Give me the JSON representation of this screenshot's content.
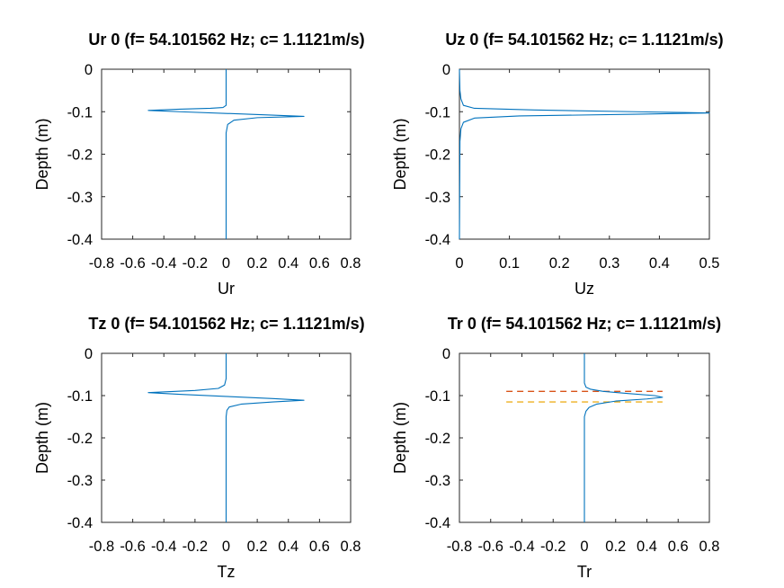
{
  "chart_data": [
    {
      "type": "line",
      "title": "Ur 0 (f= 54.101562 Hz; c= 1.1121m/s)",
      "xlabel": "Ur",
      "ylabel": "Depth (m)",
      "xlim": [
        -0.8,
        0.8
      ],
      "ylim": [
        -0.4,
        0
      ],
      "xticks": [
        "-0.8",
        "-0.6",
        "-0.4",
        "-0.2",
        "0",
        "0.2",
        "0.4",
        "0.6",
        "0.8"
      ],
      "yticks": [
        "0",
        "-0.1",
        "-0.2",
        "-0.3",
        "-0.4"
      ],
      "line_color": "#0072bd",
      "series": [
        {
          "x": [
            0,
            0,
            0,
            -0.02,
            -0.1,
            -0.3,
            -0.5,
            -0.3,
            0,
            0.3,
            0.5,
            0.2,
            0.05,
            0.01,
            0,
            0
          ],
          "y": [
            0,
            -0.06,
            -0.085,
            -0.09,
            -0.092,
            -0.094,
            -0.097,
            -0.1,
            -0.104,
            -0.108,
            -0.111,
            -0.114,
            -0.12,
            -0.13,
            -0.15,
            -0.4
          ]
        }
      ]
    },
    {
      "type": "line",
      "title": "Uz 0 (f= 54.101562 Hz; c= 1.1121m/s)",
      "xlabel": "Uz",
      "ylabel": "Depth (m)",
      "xlim": [
        0,
        0.5
      ],
      "ylim": [
        -0.4,
        0
      ],
      "xticks": [
        "0",
        "0.1",
        "0.2",
        "0.3",
        "0.4",
        "0.5"
      ],
      "yticks": [
        "0",
        "-0.1",
        "-0.2",
        "-0.3",
        "-0.4"
      ],
      "line_color": "#0072bd",
      "series": [
        {
          "x": [
            0,
            0.001,
            0.003,
            0.008,
            0.03,
            0.15,
            0.35,
            0.5,
            0.35,
            0.12,
            0.03,
            0.008,
            0.003,
            0.001,
            0
          ],
          "y": [
            0,
            -0.05,
            -0.07,
            -0.085,
            -0.092,
            -0.096,
            -0.1,
            -0.103,
            -0.106,
            -0.11,
            -0.115,
            -0.125,
            -0.14,
            -0.17,
            -0.4
          ]
        }
      ]
    },
    {
      "type": "line",
      "title": "Tz 0 (f= 54.101562 Hz; c= 1.1121m/s)",
      "xlabel": "Tz",
      "ylabel": "Depth (m)",
      "xlim": [
        -0.8,
        0.8
      ],
      "ylim": [
        -0.4,
        0
      ],
      "xticks": [
        "-0.8",
        "-0.6",
        "-0.4",
        "-0.2",
        "0",
        "0.2",
        "0.4",
        "0.6",
        "0.8"
      ],
      "yticks": [
        "0",
        "-0.1",
        "-0.2",
        "-0.3",
        "-0.4"
      ],
      "line_color": "#0072bd",
      "series": [
        {
          "x": [
            0,
            0,
            -0.01,
            -0.05,
            -0.2,
            -0.5,
            -0.3,
            0,
            0.3,
            0.5,
            0.3,
            0.1,
            0.02,
            0.005,
            0,
            0
          ],
          "y": [
            0,
            -0.06,
            -0.075,
            -0.083,
            -0.088,
            -0.093,
            -0.097,
            -0.102,
            -0.107,
            -0.111,
            -0.115,
            -0.12,
            -0.127,
            -0.135,
            -0.15,
            -0.4
          ]
        }
      ]
    },
    {
      "type": "line",
      "title": "Tr 0 (f= 54.101562 Hz; c= 1.1121m/s)",
      "xlabel": "Tr",
      "ylabel": "Depth (m)",
      "xlim": [
        -0.8,
        0.8
      ],
      "ylim": [
        -0.4,
        0
      ],
      "xticks": [
        "-0.8",
        "-0.6",
        "-0.4",
        "-0.2",
        "0",
        "0.2",
        "0.4",
        "0.6",
        "0.8"
      ],
      "yticks": [
        "0",
        "-0.1",
        "-0.2",
        "-0.3",
        "-0.4"
      ],
      "line_color": "#0072bd",
      "series": [
        {
          "x": [
            0,
            0,
            0.01,
            0.04,
            0.12,
            0.28,
            0.45,
            0.5,
            0.4,
            0.2,
            0.08,
            0.03,
            0.01,
            0,
            0
          ],
          "y": [
            0,
            -0.07,
            -0.08,
            -0.085,
            -0.09,
            -0.095,
            -0.1,
            -0.104,
            -0.108,
            -0.113,
            -0.12,
            -0.128,
            -0.137,
            -0.15,
            -0.4
          ]
        }
      ],
      "reference_lines": [
        {
          "y": -0.09,
          "x": [
            -0.5,
            0.5
          ],
          "color": "#d95319",
          "style": "dashed"
        },
        {
          "y": -0.115,
          "x": [
            -0.5,
            0.5
          ],
          "color": "#edb120",
          "style": "dashed"
        }
      ]
    }
  ]
}
